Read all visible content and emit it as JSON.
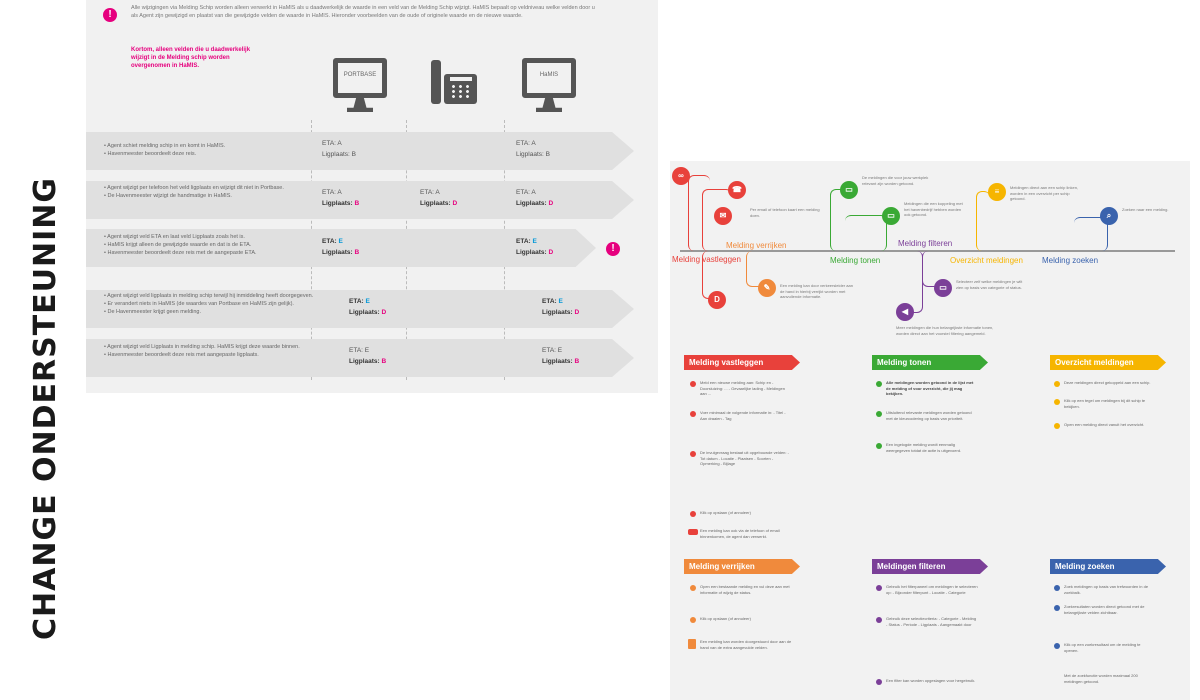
{
  "page": {
    "vertical_title": "CHANGE ONDERSTEUNING",
    "colors": {
      "magenta": "#e6007e",
      "blue_accent": "#0097d7",
      "red": "#e8413b",
      "orange": "#f08a3c",
      "green": "#3aa935",
      "purple": "#7b3f98",
      "yellow": "#f6b500",
      "navy": "#3a63ad"
    }
  },
  "left": {
    "intro": "Alle wijzigingen via Melding Schip worden alleen verwerkt in HaMIS als u daadwerkelijk de waarde in een veld van de Melding Schip wijzigt. HaMIS bepaalt op veldniveau welke velden door u als Agent zijn gewijzigd en plaatst van die gewijzigde velden de waarde in HaMIS. Hieronder voorbeelden van de oude of originele waarde en de nieuwe waarde.",
    "note": "Kortom, alleen velden die u daadwerkelijk wijzigt in de Melding schip worden overgenomen in HaMIS.",
    "columns": {
      "portbase": "PORTBASE",
      "hamis": "HaMIS"
    },
    "rows": [
      {
        "bullets": [
          "Agent schiet melding schip in en komt in HaMIS.",
          "Havenmeester beoordeelt deze reis."
        ],
        "portbase": {
          "eta_label": "ETA:",
          "eta_val": "A",
          "lig_label": "Ligplaats:",
          "lig_val": "B"
        },
        "phone": {
          "eta_label": "",
          "eta_val": "",
          "lig_label": "",
          "lig_val": ""
        },
        "hamis": {
          "eta_label": "ETA:",
          "eta_val": "A",
          "lig_label": "Ligplaats:",
          "lig_val": "B"
        }
      },
      {
        "bullets": [
          "Agent wijzigt per telefoon het veld ligplaats en wijzigt dit niet in Portbase.",
          "De Havenmeester wijzigt de handmatige in HaMIS."
        ],
        "portbase": {
          "eta_label": "ETA:",
          "eta_val": "A",
          "lig_label": "Ligplaats:",
          "lig_val": "B"
        },
        "phone": {
          "eta_label": "ETA:",
          "eta_val": "A",
          "lig_label": "Ligplaats:",
          "lig_val": "D"
        },
        "hamis": {
          "eta_label": "ETA:",
          "eta_val": "A",
          "lig_label": "Ligplaats:",
          "lig_val": "D"
        }
      },
      {
        "bullets": [
          "Agent wijzigt veld ETA en laat veld Ligplaats zoals het is.",
          "HaMIS krijgt alleen de gewijzigde waarde en dat is de ETA.",
          "Havenmeester beoordeelt deze reis met de aangepaste ETA."
        ],
        "portbase": {
          "eta_label": "ETA:",
          "eta_val": "E",
          "lig_label": "Ligplaats:",
          "lig_val": "B"
        },
        "phone": {
          "eta_label": "",
          "eta_val": "",
          "lig_label": "",
          "lig_val": ""
        },
        "hamis": {
          "eta_label": "ETA:",
          "eta_val": "E",
          "lig_label": "Ligplaats:",
          "lig_val": "D"
        }
      },
      {
        "bullets": [
          "Agent wijzigt veld ligplaats in melding schip terwijl hij inmiddeling heeft doorgegeven.",
          "Er verandert niets in HaMIS (de waardes van Portbase en HaMIS zijn gelijk).",
          "De Havenmeester krijgt geen melding."
        ],
        "portbase": {
          "eta_label": "ETA:",
          "eta_val": "E",
          "lig_label": "Ligplaats:",
          "lig_val": "D"
        },
        "phone": {
          "eta_label": "",
          "eta_val": "",
          "lig_label": "",
          "lig_val": ""
        },
        "hamis": {
          "eta_label": "ETA:",
          "eta_val": "E",
          "lig_label": "Ligplaats:",
          "lig_val": "D"
        }
      },
      {
        "bullets": [
          "Agent wijzigt veld Ligplaats in melding schip. HaMIS krijgt deze waarde binnen.",
          "Havenmeester beoordeelt deze reis met aangepaste ligplaats."
        ],
        "portbase": {
          "eta_label": "ETA:",
          "eta_val": "E",
          "lig_label": "Ligplaats:",
          "lig_val": "B"
        },
        "phone": {
          "eta_label": "",
          "eta_val": "",
          "lig_label": "",
          "lig_val": ""
        },
        "hamis": {
          "eta_label": "ETA:",
          "eta_val": "E",
          "lig_label": "Ligplaats:",
          "lig_val": "B"
        }
      }
    ]
  },
  "right": {
    "timeline": {
      "labels": {
        "vastleggen": "Melding vastleggen",
        "verrijken": "Melding verrijken",
        "tonen": "Melding tonen",
        "filteren": "Melding filteren",
        "overzicht": "Overzicht meldingen",
        "zoeken": "Melding zoeken"
      },
      "notes": {
        "phone": "Per email of telefoon kaart een melding doen.",
        "enrich": "Een melding kan door verkeersleider aan de hand in hierbij verrijkt worden met aanvullende informatie.",
        "show1": "De meldingen die voor jouw werkplek relevant zijn worden getoond.",
        "show2": "Meldingen die een koppeling met het havenbedrijf hebben worden ook getoond.",
        "filter": "Selecteer zelf welke meldingen je wilt zien op basis van categorie of status.",
        "megaphone": "Meer meldingen die hun belangrijkste informatie tonen, worden direct aan het voorstel filtering aangemeld.",
        "overview": "Meldingen direct aan een schip linken, worden in een overzicht per schip getoond.",
        "search": "Zoeken naar een melding."
      }
    },
    "sections": [
      {
        "title": "Melding vastleggen",
        "items": [
          "Meld een nieuwe melding aan: Schip en - Doorsluizing: ... - Gevaarlijke lading - Meldingen aan ...",
          "Voer minimaal de volgende informatie in: - Titel - Aan draaien - Tag",
          "De invulgevraag bestaat uit opgebouwde velden: - Tot datum - Locatie - Plaatsen - Soorten - Opmerking - Bijlage",
          "Klik op opslaan (of annuleer)",
          "Een melding kan ook via de telefoon of email binnenkomen, de agent dan verwerkt."
        ]
      },
      {
        "title": "Melding tonen",
        "items": [
          "Alle meldingen worden getoond in de lijst met de melding of voor overzicht, die jij mag bekijken.",
          "Uitsluitend relevante meldingen worden getoond met de kleurcodering op basis van prioriteit.",
          "Een ingelogde melding wordt eenmalig weergegeven totdat de actie is uitgevoerd."
        ]
      },
      {
        "title": "Overzicht meldingen",
        "items": [
          "Deze meldingen direct gekoppeld aan een schip.",
          "Klik op een tegel om meldingen bij dit schip te bekijken.",
          "Open een melding direct vanuit het overzicht."
        ]
      },
      {
        "title": "Melding verrijken",
        "items": [
          "Open een bestaande melding en vul deze aan met informatie of wijzig de status.",
          "Klik op opslaan (of annuleer)",
          "Een melding kan worden doorgestuurd door aan de hand van de extra aangevulde velden."
        ]
      },
      {
        "title": "Meldingen filteren",
        "items": [
          "Gebruik het filterpaneel om meldingen te selecteren op: - Bijzonder filterpunt - Locatie - Categorie",
          "Gebruik deze selectiecriteria: - Categorie - Melding - Status - Periode - Ligplaats - Aangemaakt door",
          "Een filter kan worden opgeslagen voor hergebruik."
        ]
      },
      {
        "title": "Melding zoeken",
        "items": [
          "Zoek meldingen op basis van trefwoorden in de zoekbalk.",
          "Zoekresultaten worden direct getoond met de belangrijkste velden zichtbaar.",
          "Klik op een zoekresultaat om de melding te openen.",
          "Met de zoekfunctie worden maximaal 200 meldingen getoond."
        ]
      }
    ]
  }
}
